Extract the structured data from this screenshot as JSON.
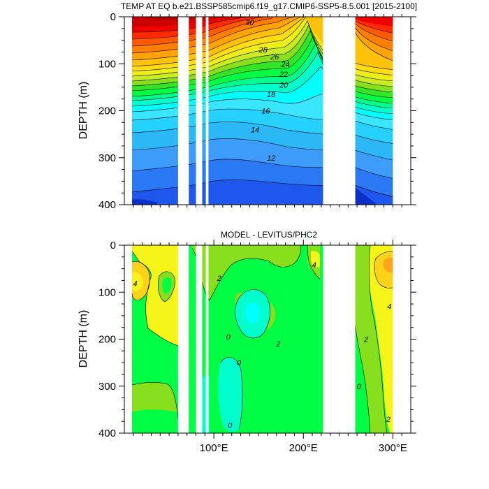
{
  "chart_data": [
    {
      "type": "contour",
      "title": "TEMP AT EQ b.e21.BSSP585cmip6.f19_g17.CMIP6-SSP5-8.5.001 [2015-2100]",
      "ylabel": "DEPTH (m)",
      "xlabel": "",
      "xlim": [
        0,
        320
      ],
      "ylim": [
        400,
        0
      ],
      "y_ticks": [
        0,
        100,
        200,
        300,
        400
      ],
      "x_ticks": [],
      "x_minor_step": 10,
      "y_minor_step": 25,
      "land_gaps": [
        [
          60,
          72
        ],
        [
          80,
          87
        ],
        [
          91,
          94
        ],
        [
          222,
          258
        ]
      ],
      "data_extent": [
        5,
        300
      ],
      "contour_levels": [
        6,
        7,
        8,
        9,
        10,
        11,
        12,
        13,
        14,
        15,
        16,
        17,
        18,
        19,
        20,
        21,
        22,
        23,
        24,
        25,
        26,
        27,
        28,
        29,
        30,
        31
      ],
      "contour_labels": [
        {
          "text": "30",
          "x": 140,
          "y": 12
        },
        {
          "text": "28",
          "x": 155,
          "y": 70
        },
        {
          "text": "26",
          "x": 168,
          "y": 85
        },
        {
          "text": "24",
          "x": 180,
          "y": 100
        },
        {
          "text": "22",
          "x": 178,
          "y": 122
        },
        {
          "text": "20",
          "x": 178,
          "y": 145
        },
        {
          "text": "18",
          "x": 164,
          "y": 165
        },
        {
          "text": "16",
          "x": 158,
          "y": 200
        },
        {
          "text": "14",
          "x": 146,
          "y": 240
        },
        {
          "text": "12",
          "x": 164,
          "y": 300
        }
      ],
      "colors": [
        "#0a2ec8",
        "#1f56ee",
        "#2b78f5",
        "#3d9bfa",
        "#2cb8f6",
        "#25d1ff",
        "#3ae6ff",
        "#00ffff",
        "#00ffcc",
        "#00ff8c",
        "#00ff44",
        "#33e625",
        "#88e01c",
        "#c8eb24",
        "#eeee18",
        "#ffdd12",
        "#ffc20a",
        "#ffa306",
        "#ff7f00",
        "#ff5a00",
        "#ff2a00",
        "#ee0000",
        "#cc0000",
        "#aa0000",
        "#990000"
      ]
    },
    {
      "type": "contour",
      "title": "MODEL - LEVITUS/PHC2",
      "ylabel": "DEPTH (m)",
      "xlabel": "",
      "xlim": [
        0,
        320
      ],
      "ylim": [
        400,
        0
      ],
      "y_ticks": [
        0,
        100,
        200,
        300,
        400
      ],
      "x_ticks": [
        100,
        200,
        300
      ],
      "x_tick_labels": [
        "100°E",
        "200°E",
        "300°E"
      ],
      "x_minor_step": 10,
      "y_minor_step": 25,
      "land_gaps": [
        [
          60,
          72
        ],
        [
          80,
          87
        ],
        [
          91,
          94
        ],
        [
          222,
          258
        ]
      ],
      "data_extent": [
        5,
        300
      ],
      "contour_levels": [
        -4,
        -2,
        0,
        2,
        4,
        6
      ],
      "contour_labels": [
        {
          "text": "4",
          "x": 12,
          "y": 82
        },
        {
          "text": "2",
          "x": 106,
          "y": 70
        },
        {
          "text": "0",
          "x": 116,
          "y": 195
        },
        {
          "text": "2",
          "x": 172,
          "y": 210
        },
        {
          "text": "0",
          "x": 128,
          "y": 250
        },
        {
          "text": "4",
          "x": 212,
          "y": 42
        },
        {
          "text": "4",
          "x": 296,
          "y": 130
        },
        {
          "text": "2",
          "x": 270,
          "y": 200
        },
        {
          "text": "0",
          "x": 262,
          "y": 300
        },
        {
          "text": "0",
          "x": 118,
          "y": 383
        },
        {
          "text": "2",
          "x": 295,
          "y": 370
        }
      ],
      "colors": [
        "#00ffcc",
        "#00ff44",
        "#88e01c",
        "#f5f519",
        "#ffd21a",
        "#ffa31a"
      ]
    }
  ]
}
